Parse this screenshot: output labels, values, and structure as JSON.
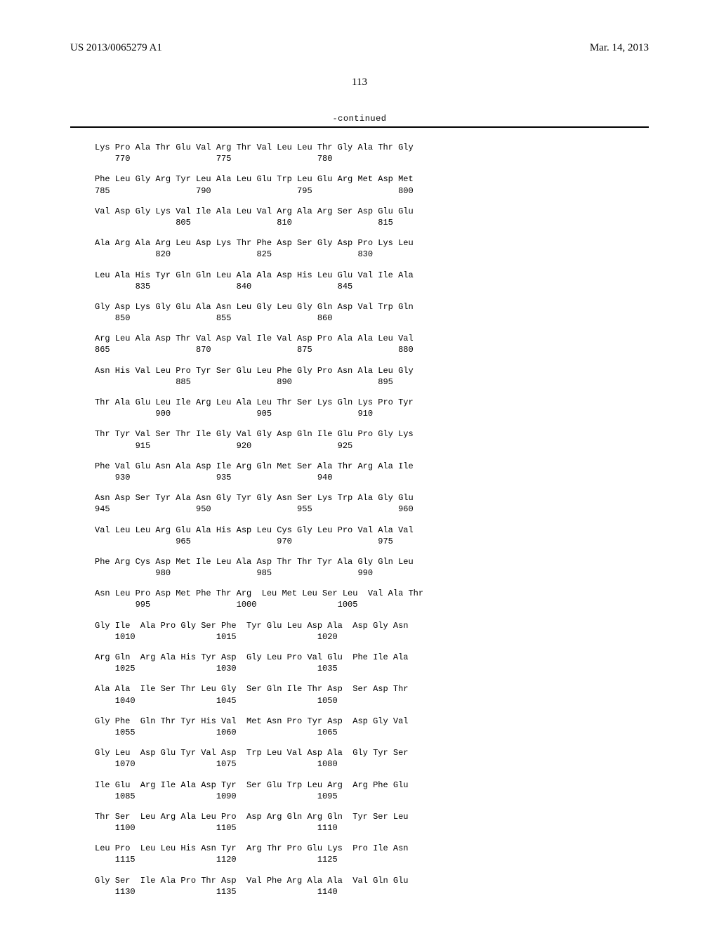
{
  "header": {
    "pub_number": "US 2013/0065279 A1",
    "pub_date": "Mar. 14, 2013"
  },
  "page_number": "113",
  "continued_label": "-continued",
  "seq_blocks": [
    {
      "res": "Lys Pro Ala Thr Glu Val Arg Thr Val Leu Leu Thr Gly Ala Thr Gly",
      "num": "    770                 775                 780"
    },
    {
      "res": "Phe Leu Gly Arg Tyr Leu Ala Leu Glu Trp Leu Glu Arg Met Asp Met",
      "num": "785                 790                 795                 800"
    },
    {
      "res": "Val Asp Gly Lys Val Ile Ala Leu Val Arg Ala Arg Ser Asp Glu Glu",
      "num": "                805                 810                 815"
    },
    {
      "res": "Ala Arg Ala Arg Leu Asp Lys Thr Phe Asp Ser Gly Asp Pro Lys Leu",
      "num": "            820                 825                 830"
    },
    {
      "res": "Leu Ala His Tyr Gln Gln Leu Ala Ala Asp His Leu Glu Val Ile Ala",
      "num": "        835                 840                 845"
    },
    {
      "res": "Gly Asp Lys Gly Glu Ala Asn Leu Gly Leu Gly Gln Asp Val Trp Gln",
      "num": "    850                 855                 860"
    },
    {
      "res": "Arg Leu Ala Asp Thr Val Asp Val Ile Val Asp Pro Ala Ala Leu Val",
      "num": "865                 870                 875                 880"
    },
    {
      "res": "Asn His Val Leu Pro Tyr Ser Glu Leu Phe Gly Pro Asn Ala Leu Gly",
      "num": "                885                 890                 895"
    },
    {
      "res": "Thr Ala Glu Leu Ile Arg Leu Ala Leu Thr Ser Lys Gln Lys Pro Tyr",
      "num": "            900                 905                 910"
    },
    {
      "res": "Thr Tyr Val Ser Thr Ile Gly Val Gly Asp Gln Ile Glu Pro Gly Lys",
      "num": "        915                 920                 925"
    },
    {
      "res": "Phe Val Glu Asn Ala Asp Ile Arg Gln Met Ser Ala Thr Arg Ala Ile",
      "num": "    930                 935                 940"
    },
    {
      "res": "Asn Asp Ser Tyr Ala Asn Gly Tyr Gly Asn Ser Lys Trp Ala Gly Glu",
      "num": "945                 950                 955                 960"
    },
    {
      "res": "Val Leu Leu Arg Glu Ala His Asp Leu Cys Gly Leu Pro Val Ala Val",
      "num": "                965                 970                 975"
    },
    {
      "res": "Phe Arg Cys Asp Met Ile Leu Ala Asp Thr Thr Tyr Ala Gly Gln Leu",
      "num": "            980                 985                 990"
    },
    {
      "res": "Asn Leu Pro Asp Met Phe Thr Arg  Leu Met Leu Ser Leu  Val Ala Thr",
      "num": "        995                 1000                1005"
    },
    {
      "res": "Gly Ile  Ala Pro Gly Ser Phe  Tyr Glu Leu Asp Ala  Asp Gly Asn",
      "num": "    1010                1015                1020"
    },
    {
      "res": "Arg Gln  Arg Ala His Tyr Asp  Gly Leu Pro Val Glu  Phe Ile Ala",
      "num": "    1025                1030                1035"
    },
    {
      "res": "Ala Ala  Ile Ser Thr Leu Gly  Ser Gln Ile Thr Asp  Ser Asp Thr",
      "num": "    1040                1045                1050"
    },
    {
      "res": "Gly Phe  Gln Thr Tyr His Val  Met Asn Pro Tyr Asp  Asp Gly Val",
      "num": "    1055                1060                1065"
    },
    {
      "res": "Gly Leu  Asp Glu Tyr Val Asp  Trp Leu Val Asp Ala  Gly Tyr Ser",
      "num": "    1070                1075                1080"
    },
    {
      "res": "Ile Glu  Arg Ile Ala Asp Tyr  Ser Glu Trp Leu Arg  Arg Phe Glu",
      "num": "    1085                1090                1095"
    },
    {
      "res": "Thr Ser  Leu Arg Ala Leu Pro  Asp Arg Gln Arg Gln  Tyr Ser Leu",
      "num": "    1100                1105                1110"
    },
    {
      "res": "Leu Pro  Leu Leu His Asn Tyr  Arg Thr Pro Glu Lys  Pro Ile Asn",
      "num": "    1115                1120                1125"
    },
    {
      "res": "Gly Ser  Ile Ala Pro Thr Asp  Val Phe Arg Ala Ala  Val Gln Glu",
      "num": "    1130                1135                1140"
    }
  ]
}
